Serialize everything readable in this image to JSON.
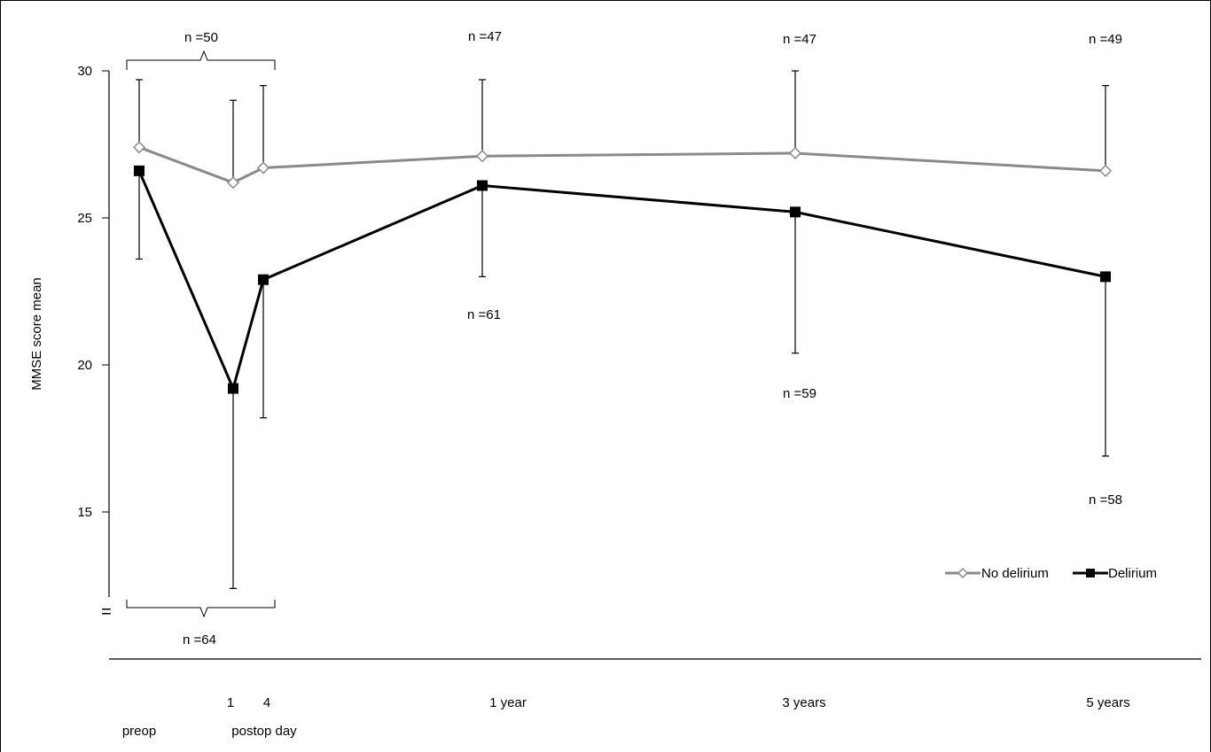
{
  "chart_data": {
    "type": "line",
    "ylabel": "MMSE score mean",
    "ylim": [
      12,
      30
    ],
    "yticks": [
      15,
      20,
      25,
      30
    ],
    "y_axis_break_mark": "=",
    "x": [
      "preop",
      "1",
      "4",
      "1 year",
      "3 years",
      "5 years"
    ],
    "x_group_label": "postop day",
    "series": [
      {
        "name": "No delirium",
        "marker": "open-diamond",
        "color": "#8a8a8a",
        "values": [
          27.4,
          26.2,
          26.7,
          27.1,
          27.2,
          26.6
        ],
        "error_upper": [
          29.7,
          29.0,
          29.5,
          29.7,
          30.0,
          29.5
        ]
      },
      {
        "name": "Delirium",
        "marker": "filled-square",
        "color": "#000000",
        "values": [
          26.6,
          19.2,
          22.9,
          26.1,
          25.2,
          23.0
        ],
        "error_lower": [
          23.6,
          12.4,
          18.2,
          23.0,
          20.4,
          16.9
        ]
      }
    ],
    "annotations": {
      "no_delirium_n": [
        "n =50",
        "n =47",
        "n =47",
        "n =49"
      ],
      "delirium_n": [
        "n =64",
        "n =61",
        "n =59",
        "n =58"
      ]
    },
    "legend": {
      "position": "bottom-right"
    }
  }
}
